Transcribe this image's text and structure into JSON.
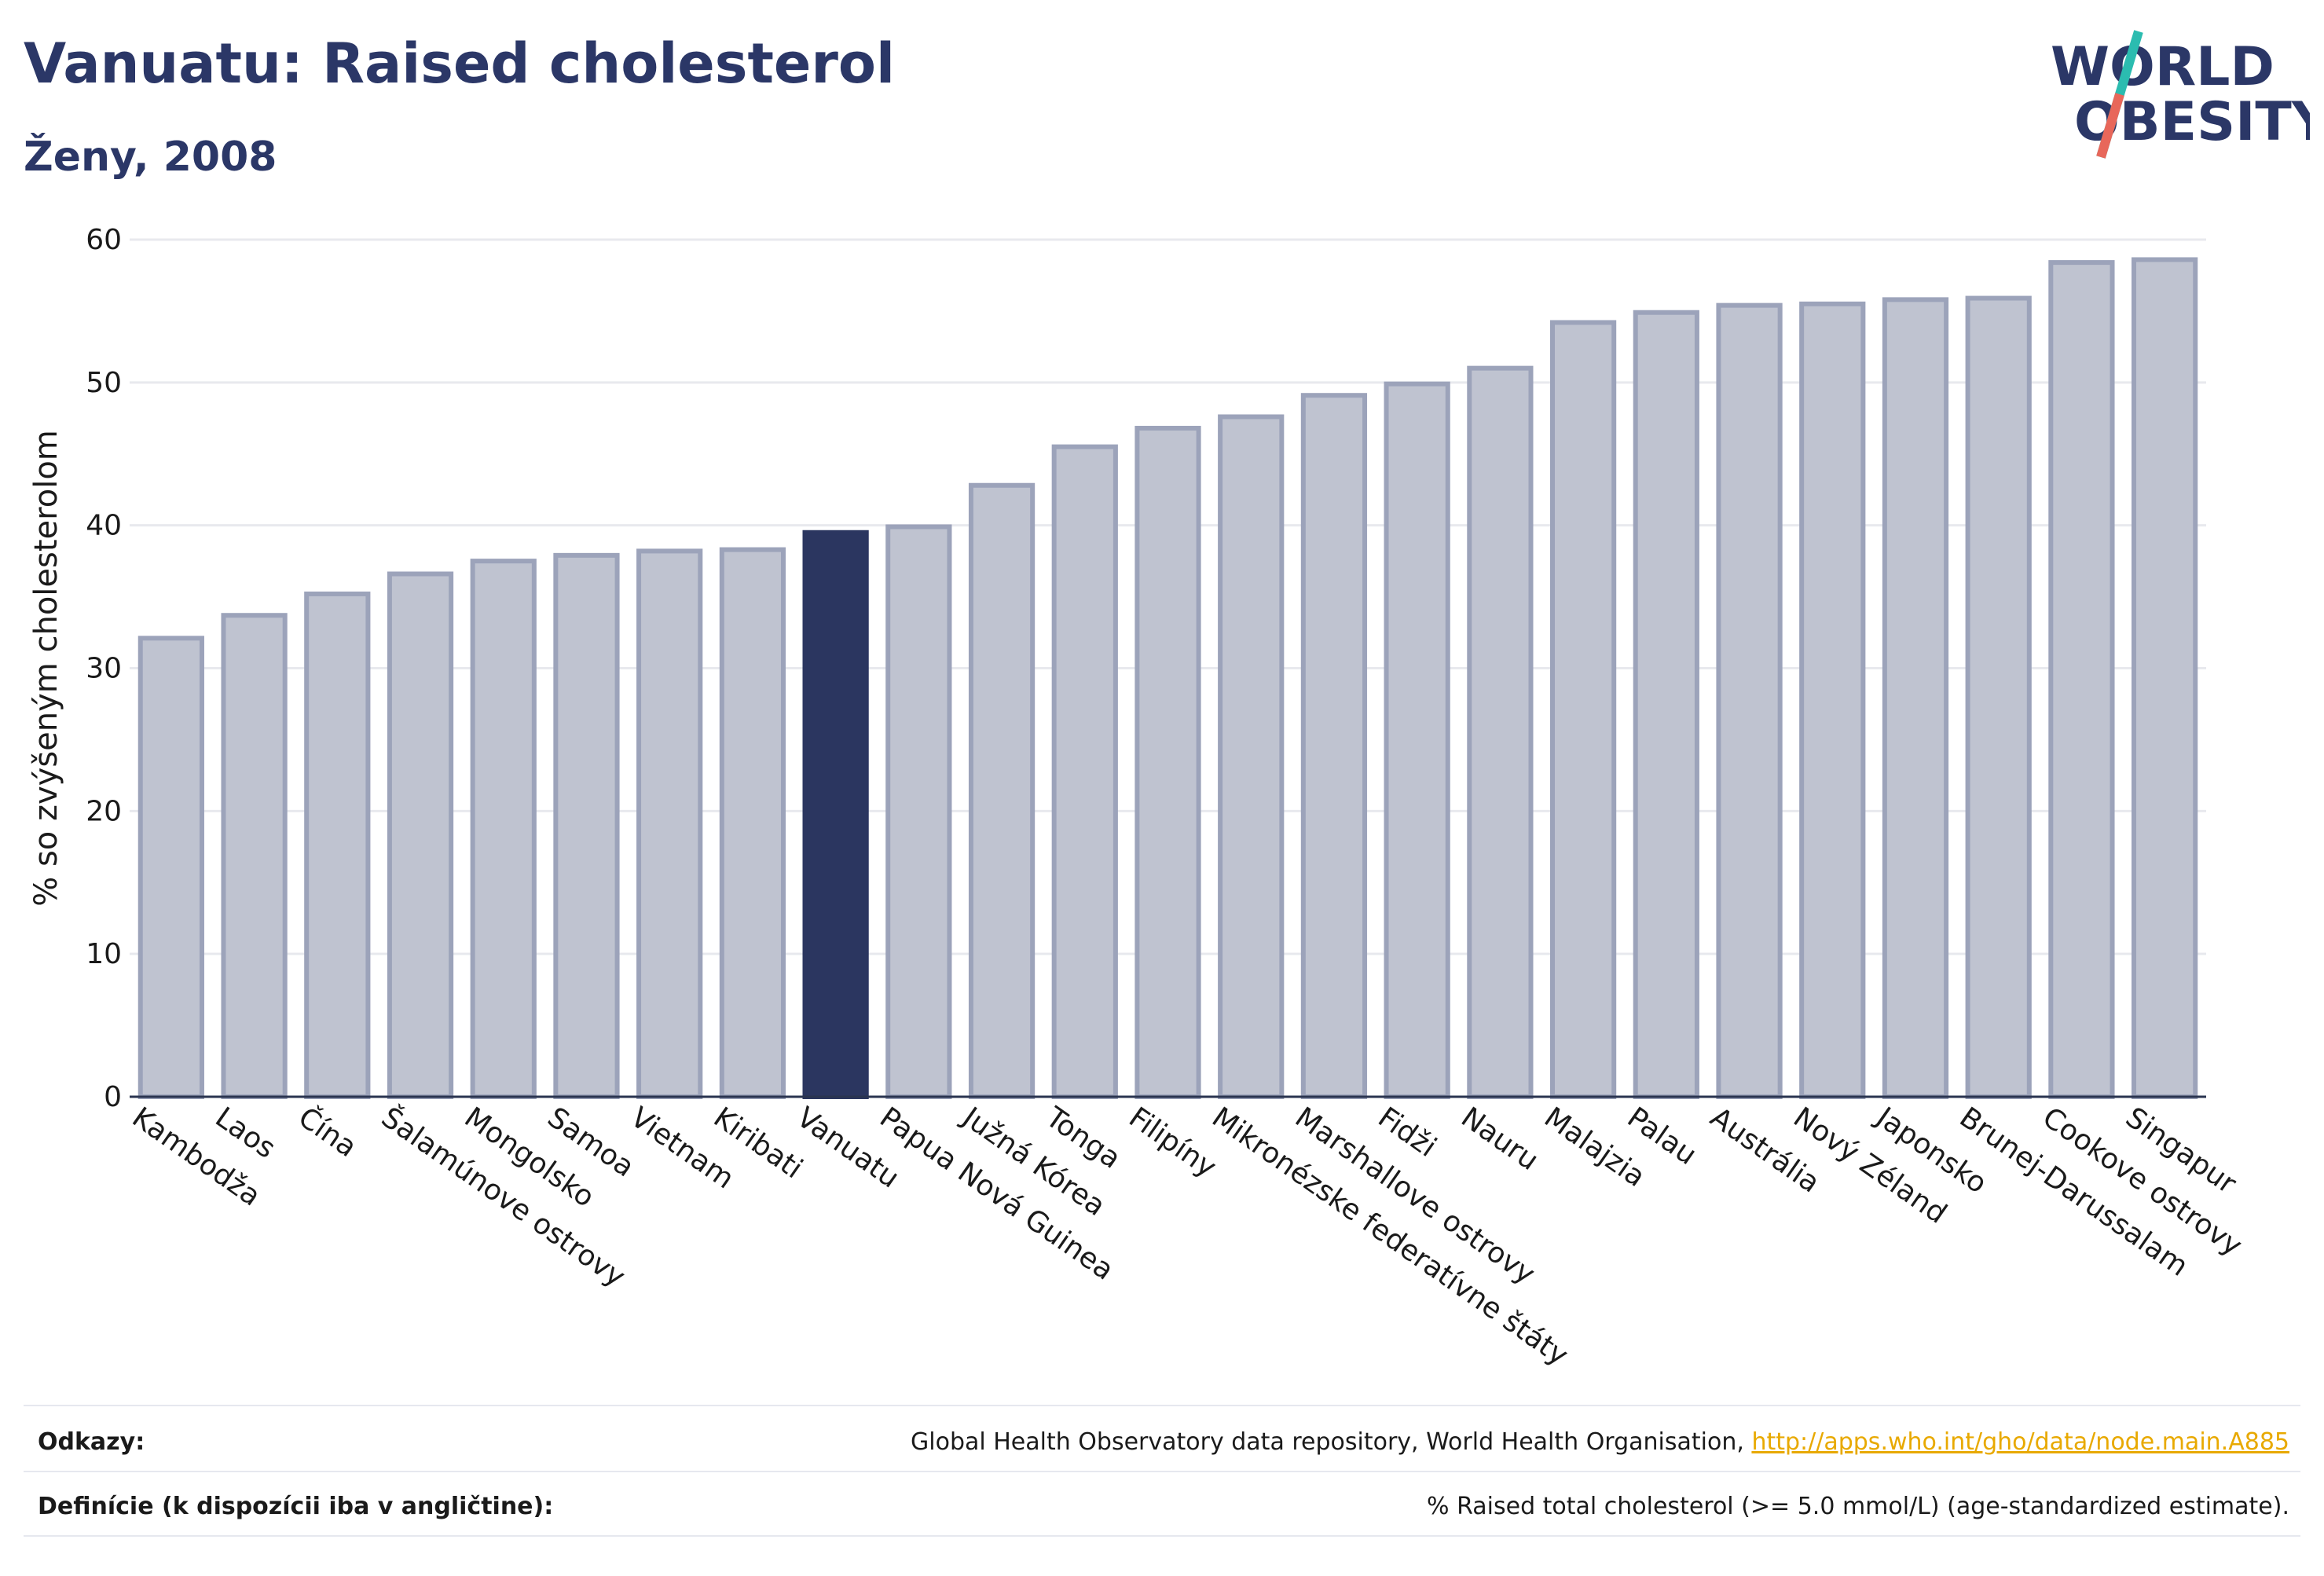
{
  "header": {
    "title": "Vanuatu: Raised cholesterol",
    "subtitle": "Ženy, 2008"
  },
  "logo": {
    "line1": "WORLD",
    "line2": "OBESITY"
  },
  "colors": {
    "highlight": "#2b3660",
    "bar_fill": "#bfc3d0",
    "bar_stroke": "#9ca3ba",
    "grid": "#e8e9ee",
    "axis_text": "#1a1a1a"
  },
  "chart_data": {
    "type": "bar",
    "ylabel": "% so zvýšeným cholesterolom",
    "ylim": [
      0,
      60
    ],
    "yticks": [
      0,
      10,
      20,
      30,
      40,
      50,
      60
    ],
    "highlight": "Vanuatu",
    "categories": [
      "Kambodža",
      "Laos",
      "Čína",
      "Šalamúnove ostrovy",
      "Mongolsko",
      "Samoa",
      "Vietnam",
      "Kiribati",
      "Vanuatu",
      "Papua Nová Guinea",
      "Južná Kórea",
      "Tonga",
      "Filipíny",
      "Mikronézske federatívne štáty",
      "Marshallove ostrovy",
      "Fidži",
      "Nauru",
      "Malajzia",
      "Palau",
      "Austrália",
      "Nový Zéland",
      "Japonsko",
      "Brunej-Darussalam",
      "Cookove ostrovy",
      "Singapur"
    ],
    "values": [
      32.1,
      33.7,
      35.2,
      36.6,
      37.5,
      37.9,
      38.2,
      38.3,
      39.5,
      39.9,
      42.8,
      45.5,
      46.8,
      47.6,
      49.1,
      49.9,
      51.0,
      54.2,
      54.9,
      55.4,
      55.5,
      55.8,
      55.9,
      58.4,
      58.6
    ],
    "grid": true
  },
  "footer": {
    "refs_label": "Odkazy:",
    "refs_text": "Global Health Observatory data repository, World Health Organisation, ",
    "refs_link": "http://apps.who.int/gho/data/node.main.A885",
    "defs_label": "Definície (k dispozícii iba v angličtine):",
    "defs_text": "% Raised total cholesterol (>= 5.0 mmol/L) (age-standardized estimate)."
  }
}
